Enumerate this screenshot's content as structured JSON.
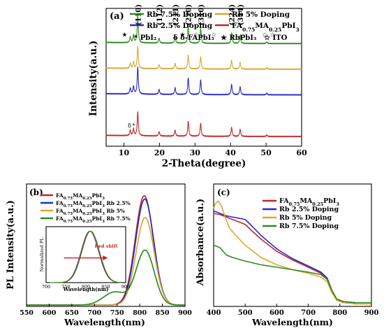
{
  "chart_data": [
    {
      "panel_label": "(a)",
      "type": "line",
      "xlabel": "2-Theta(degree)",
      "ylabel": "Intensity(a.u.)",
      "xlim": [
        5,
        60
      ],
      "xticks": [
        10,
        20,
        30,
        40,
        50,
        60
      ],
      "ylim": [
        0,
        4.3
      ],
      "legend_placement": "top",
      "legend_markers": [
        {
          "symbol": "*",
          "label": "PbI₂"
        },
        {
          "symbol": "δ",
          "label": "δ-FAPbI₃"
        },
        {
          "symbol": "★",
          "label": "RbPbI₃"
        },
        {
          "symbol": "☆",
          "label": "ITO"
        }
      ],
      "series": [
        {
          "name": "Rb 7.5% Doping",
          "color": "#2e8b22",
          "offset": 3.2
        },
        {
          "name": "Rb 5% Doping",
          "color": "#d9a82e",
          "offset": 2.4
        },
        {
          "name": "Rb 2.5% Doping",
          "color": "#2929c8",
          "offset": 1.6
        },
        {
          "name": "FA0.75MA0.25PbI3",
          "name_parts": [
            "FA",
            "0.75",
            "MA",
            "0.25",
            "PbI",
            "3"
          ],
          "color": "#c02828",
          "offset": 0.3
        }
      ],
      "peaks": [
        {
          "x": 11.8,
          "h": 0.22
        },
        {
          "x": 12.7,
          "h": 0.28
        },
        {
          "x": 13.9,
          "h": 1.0
        },
        {
          "x": 19.9,
          "h": 0.18
        },
        {
          "x": 24.4,
          "h": 0.25
        },
        {
          "x": 28.1,
          "h": 0.62
        },
        {
          "x": 31.6,
          "h": 0.55
        },
        {
          "x": 40.3,
          "h": 0.38
        },
        {
          "x": 42.7,
          "h": 0.3
        },
        {
          "x": 50.2,
          "h": 0.06
        }
      ],
      "peak_labels": [
        {
          "text": "(110)",
          "x": 13.9
        },
        {
          "text": "(112)",
          "x": 19.9
        },
        {
          "text": "(211)",
          "x": 24.4
        },
        {
          "text": "(220)",
          "x": 28.1
        },
        {
          "text": "(310)",
          "x": 31.6
        },
        {
          "text": "(224)",
          "x": 40.3
        },
        {
          "text": "(314)",
          "x": 42.7
        }
      ],
      "symbol_annotations": [
        {
          "symbol": "★",
          "x": 10.2
        },
        {
          "symbol": "★",
          "x": 26.5
        },
        {
          "symbol": "☆",
          "x": 30.3
        },
        {
          "symbol": "☆",
          "x": 35.3
        },
        {
          "symbol": "☆",
          "x": 49.6
        },
        {
          "symbol": "☆",
          "x": 51.8
        }
      ],
      "bottom_annotations": [
        {
          "symbol": "δ",
          "x": 11.6
        },
        {
          "symbol": "*",
          "x": 12.7
        }
      ]
    },
    {
      "panel_label": "(b)",
      "type": "line",
      "xlabel": "Wavelength(nm)",
      "ylabel": "PL Intensity(a.u.)",
      "xlim": [
        550,
        900
      ],
      "xticks": [
        550,
        600,
        650,
        700,
        750,
        800,
        850,
        900
      ],
      "ylim": [
        0,
        1.12
      ],
      "legend_placement": "top-left",
      "series": [
        {
          "name_parts": [
            "FA",
            "0.75",
            "MA",
            "0.25",
            "PbI",
            "3",
            ""
          ],
          "color": "#c02828",
          "peak": 810,
          "amp": 1.0,
          "shoulder": 0.0
        },
        {
          "name_parts": [
            "FA",
            "0.75",
            "MA",
            "0.25",
            "PbI",
            "3",
            " Rb 2.5%"
          ],
          "color": "#2929c8",
          "peak": 811,
          "amp": 0.97,
          "shoulder": 0.0
        },
        {
          "name_parts": [
            "FA",
            "0.75",
            "MA",
            "0.25",
            "PbI",
            "3",
            " Rb 5%"
          ],
          "color": "#d9a82e",
          "peak": 812,
          "amp": 0.8,
          "shoulder": 0.0
        },
        {
          "name_parts": [
            "FA",
            "0.75",
            "MA",
            "0.25",
            "PbI",
            "3",
            " Rb 7.5%"
          ],
          "color": "#2e8b22",
          "peak": 812,
          "amp": 0.5,
          "shoulder": 0.12
        }
      ],
      "inset": {
        "xlabel": "Wavelength(nm)",
        "ylabel": "Normalized PL",
        "xlim": [
          700,
          900
        ],
        "xticks": [
          700,
          750,
          800,
          850,
          900
        ],
        "annotation": "Red shift",
        "arrow": {
          "from": 745,
          "to": 855,
          "y": 0.48
        }
      }
    },
    {
      "panel_label": "(c)",
      "type": "line",
      "xlabel": "Wavelength(nm)",
      "ylabel": "Absorbance(a.u.)",
      "xlim": [
        400,
        900
      ],
      "xticks": [
        400,
        500,
        600,
        700,
        800,
        900
      ],
      "ylim": [
        0,
        1.0
      ],
      "legend_placement": "top-right",
      "series": [
        {
          "name": "FA0.75MA0.25PbI3",
          "name_parts": [
            "FA",
            "0.75",
            "MA",
            "0.25",
            "PbI",
            "3"
          ],
          "color": "#c02828",
          "x": [
            400,
            420,
            440,
            460,
            480,
            500,
            520,
            550,
            600,
            650,
            700,
            740,
            760,
            775,
            790,
            810,
            850,
            900
          ],
          "y": [
            0.76,
            0.75,
            0.73,
            0.71,
            0.69,
            0.67,
            0.62,
            0.55,
            0.45,
            0.38,
            0.32,
            0.27,
            0.22,
            0.12,
            0.06,
            0.04,
            0.03,
            0.03
          ]
        },
        {
          "name": "Rb 2.5% Doping",
          "color": "#2929c8",
          "x": [
            400,
            420,
            440,
            460,
            480,
            500,
            520,
            550,
            600,
            650,
            700,
            740,
            760,
            775,
            790,
            810,
            850,
            900
          ],
          "y": [
            0.78,
            0.76,
            0.74,
            0.73,
            0.72,
            0.71,
            0.66,
            0.58,
            0.47,
            0.39,
            0.33,
            0.28,
            0.23,
            0.13,
            0.06,
            0.04,
            0.03,
            0.03
          ]
        },
        {
          "name": "Rb  5%  Doping",
          "color": "#d9a82e",
          "x": [
            400,
            405,
            415,
            425,
            435,
            450,
            470,
            500,
            550,
            600,
            650,
            700,
            740,
            760,
            775,
            790,
            810,
            850,
            900
          ],
          "y": [
            0.8,
            0.84,
            0.86,
            0.82,
            0.74,
            0.64,
            0.58,
            0.5,
            0.4,
            0.34,
            0.3,
            0.27,
            0.24,
            0.2,
            0.11,
            0.05,
            0.03,
            0.02,
            0.02
          ]
        },
        {
          "name": "Rb 7.5% Doping",
          "color": "#2e8b22",
          "x": [
            400,
            420,
            440,
            460,
            500,
            550,
            600,
            650,
            700,
            740,
            760,
            775,
            790,
            810,
            850,
            900
          ],
          "y": [
            0.5,
            0.48,
            0.42,
            0.4,
            0.37,
            0.34,
            0.32,
            0.3,
            0.28,
            0.26,
            0.22,
            0.13,
            0.06,
            0.04,
            0.03,
            0.03
          ]
        }
      ]
    }
  ]
}
